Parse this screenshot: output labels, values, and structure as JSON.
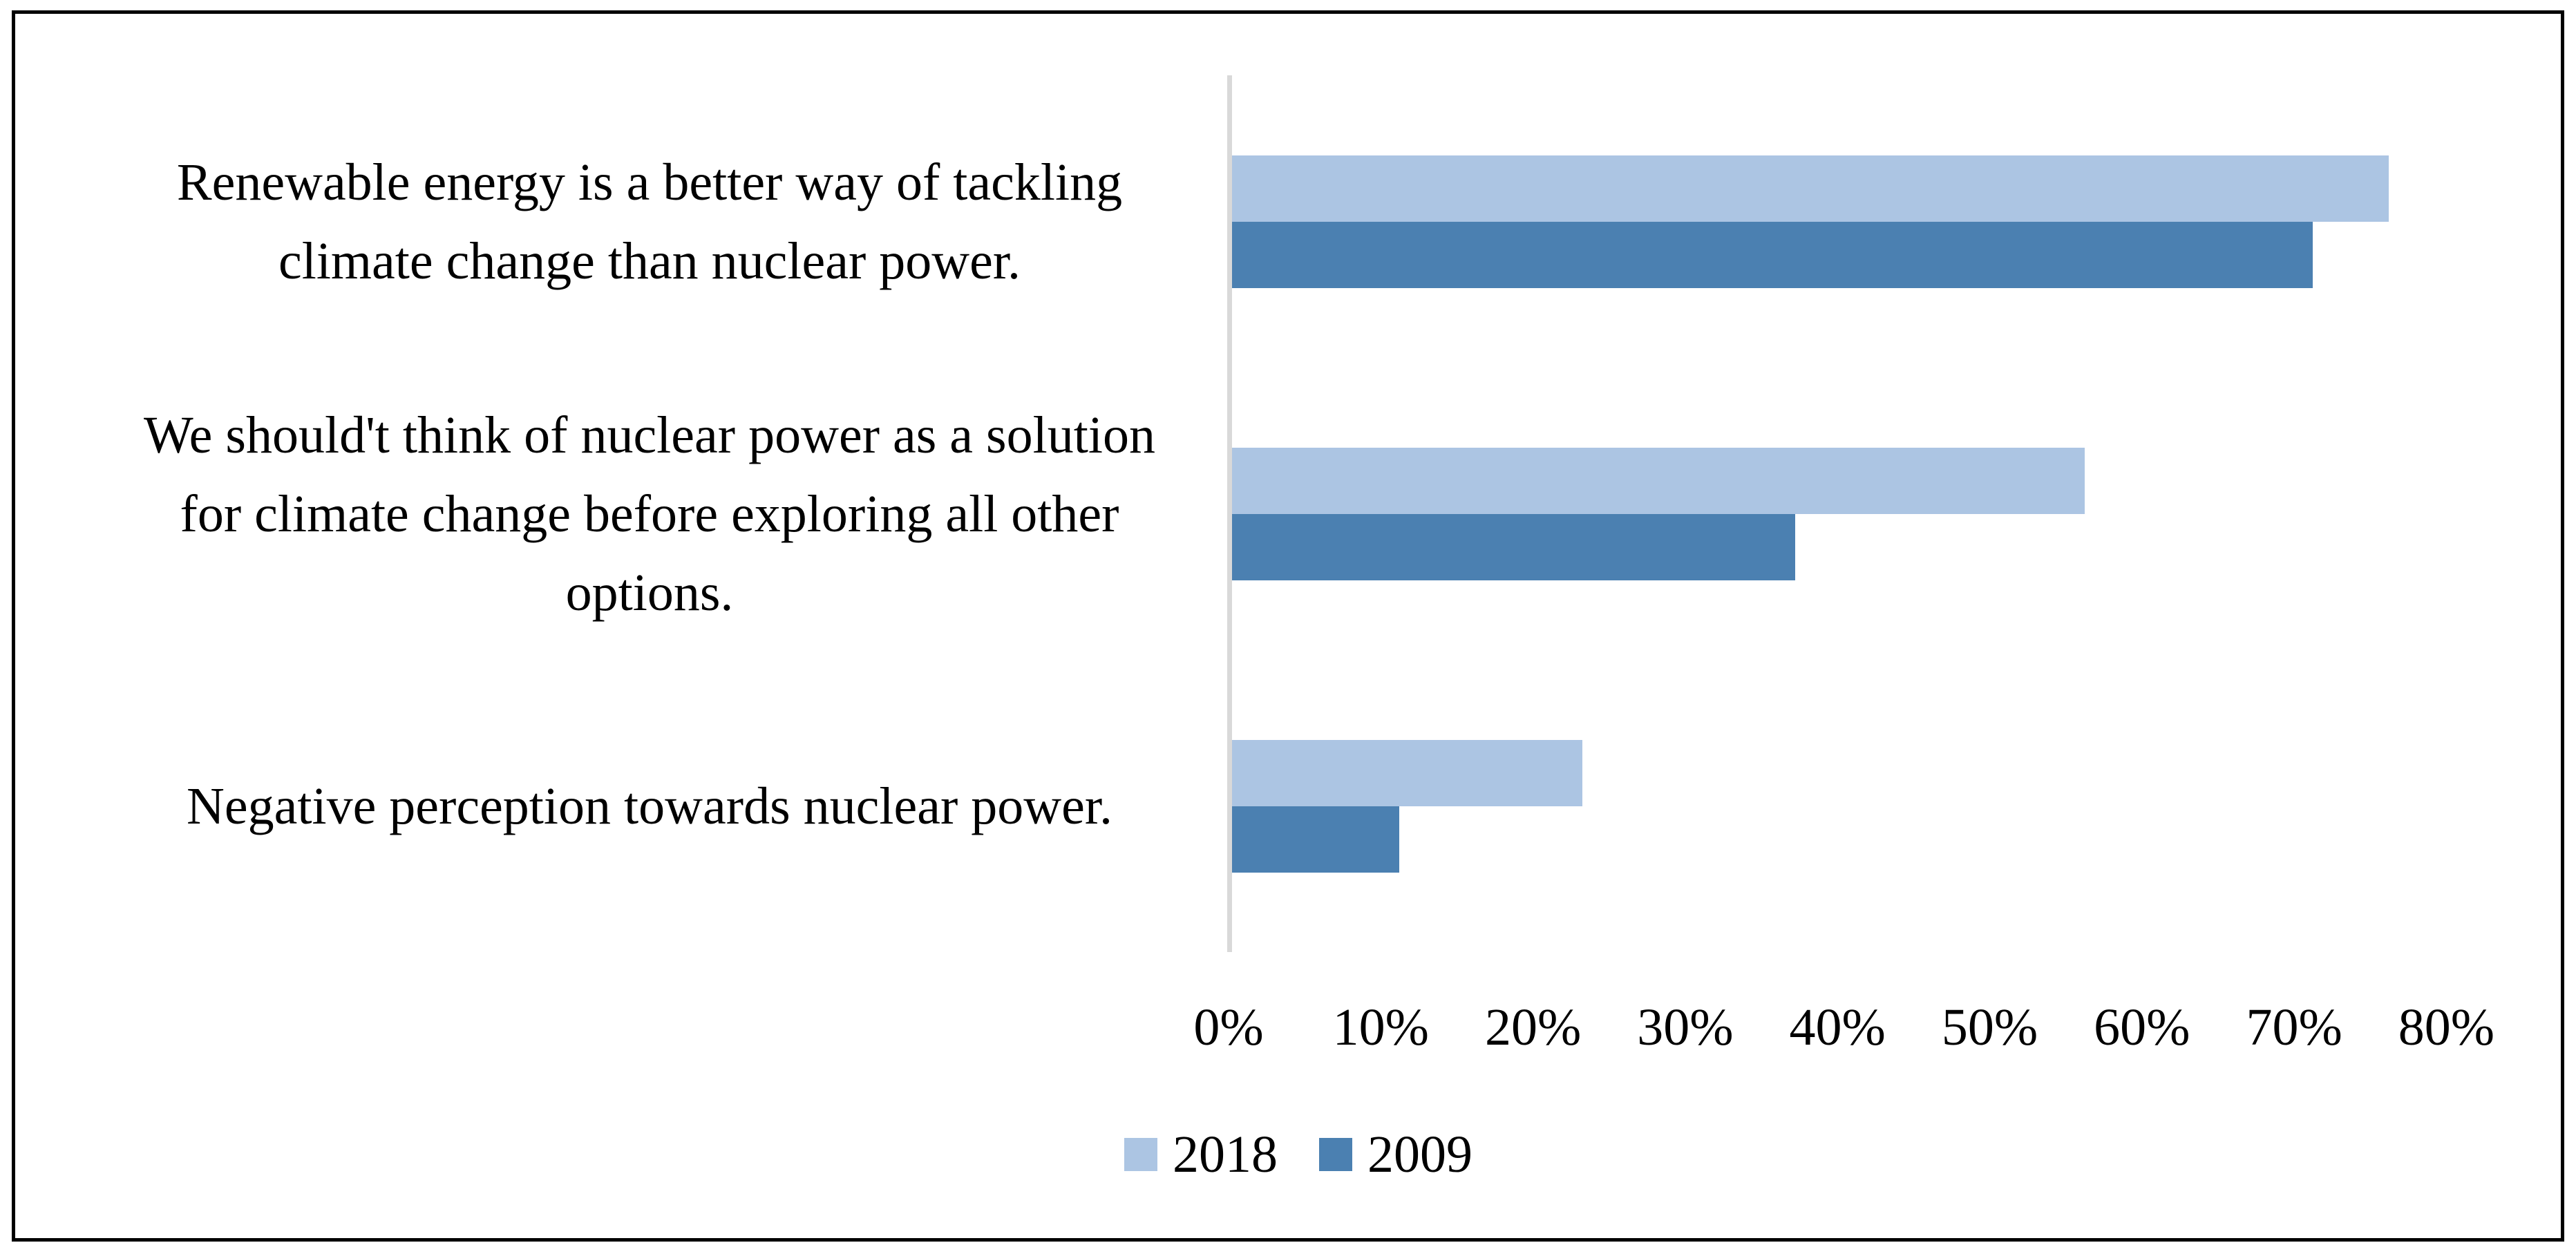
{
  "figure": {
    "border_color": "#000000",
    "background_color": "#ffffff",
    "axis_line_color": "#d9d9d9"
  },
  "chart_data": {
    "type": "bar",
    "orientation": "horizontal",
    "title": "",
    "xlabel": "",
    "ylabel": "",
    "grid": false,
    "xlim": [
      0,
      80
    ],
    "x_tick_labels": [
      "0%",
      "10%",
      "20%",
      "30%",
      "40%",
      "50%",
      "60%",
      "70%",
      "80%"
    ],
    "categories": [
      {
        "label": "Renewable energy is a better way of tackling climate change than nuclear power.",
        "lines": [
          "Renewable energy is a better way of tackling",
          "climate change than nuclear power."
        ]
      },
      {
        "label": "We should't think of nuclear power as a solution for climate change before exploring all other options.",
        "lines": [
          "We should't think of nuclear power as a solution",
          "for climate change before exploring all other",
          "options."
        ]
      },
      {
        "label": "Negative perception towards nuclear power.",
        "lines": [
          "Negative perception towards nuclear power."
        ]
      }
    ],
    "series": [
      {
        "name": "2018",
        "color": "#acc5e3",
        "values": [
          76,
          56,
          23
        ]
      },
      {
        "name": "2009",
        "color": "#4b80b1",
        "values": [
          71,
          37,
          11
        ]
      }
    ],
    "legend_position": "bottom-center",
    "legend_labels": [
      "2018",
      "2009"
    ]
  }
}
